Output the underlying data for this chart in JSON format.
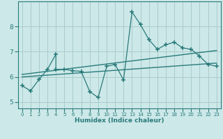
{
  "xlabel": "Humidex (Indice chaleur)",
  "background_color": "#cce8e8",
  "grid_color": "#aacccc",
  "line_color": "#2a7a7a",
  "xlim": [
    -0.5,
    23.5
  ],
  "ylim": [
    4.75,
    9.0
  ],
  "xticks": [
    0,
    1,
    2,
    3,
    4,
    5,
    6,
    7,
    8,
    9,
    10,
    11,
    12,
    13,
    14,
    15,
    16,
    17,
    18,
    19,
    20,
    21,
    22,
    23
  ],
  "yticks": [
    5,
    6,
    7,
    8
  ],
  "data_x": [
    0,
    1,
    2,
    3,
    4,
    4,
    5,
    6,
    7,
    8,
    9,
    10,
    11,
    12,
    13,
    14,
    15,
    16,
    17,
    18,
    19,
    20,
    21,
    22,
    23
  ],
  "data_y": [
    5.65,
    5.45,
    5.9,
    6.3,
    6.9,
    6.3,
    6.3,
    6.25,
    6.22,
    5.42,
    5.18,
    6.42,
    6.5,
    5.88,
    8.58,
    8.08,
    7.48,
    7.1,
    7.28,
    7.38,
    7.15,
    7.1,
    6.82,
    6.5,
    6.42
  ],
  "trend1_x": [
    0,
    23
  ],
  "trend1_y": [
    6.0,
    6.55
  ],
  "trend2_x": [
    0,
    23
  ],
  "trend2_y": [
    6.1,
    7.05
  ]
}
